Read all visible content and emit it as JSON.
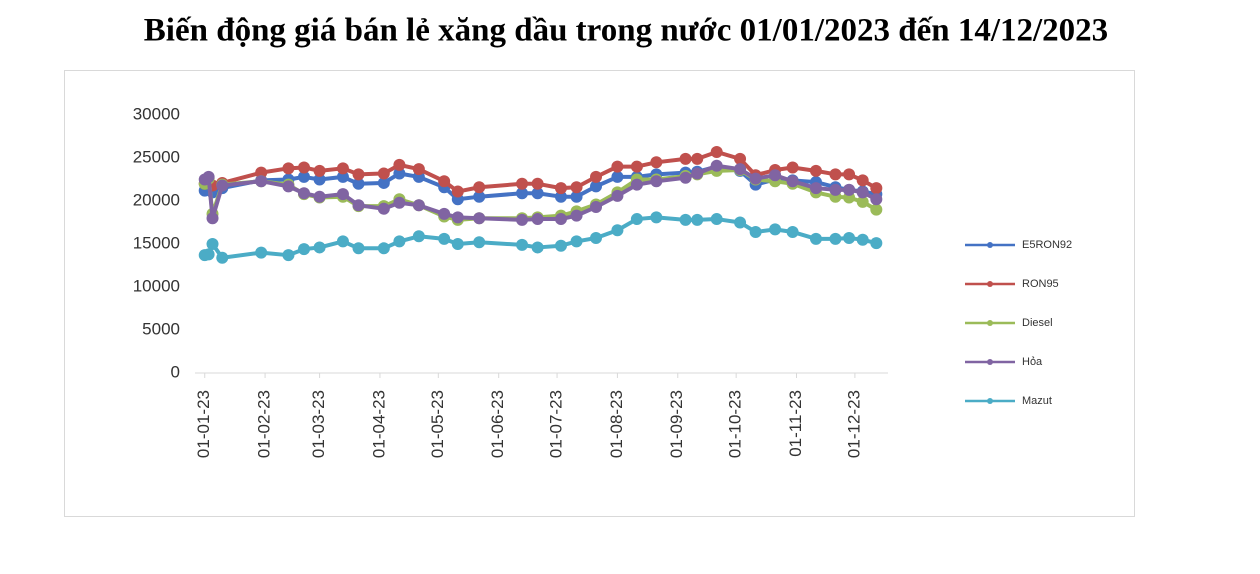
{
  "chart_data": {
    "type": "line",
    "title": "Biến động giá bán lẻ xăng dầu trong nước 01/01/2023 đến 14/12/2023",
    "x": [
      "2023-01-01",
      "2023-01-03",
      "2023-01-05",
      "2023-01-10",
      "2023-01-30",
      "2023-02-13",
      "2023-02-21",
      "2023-03-01",
      "2023-03-13",
      "2023-03-21",
      "2023-04-03",
      "2023-04-11",
      "2023-04-21",
      "2023-05-04",
      "2023-05-11",
      "2023-05-22",
      "2023-06-13",
      "2023-06-21",
      "2023-07-03",
      "2023-07-11",
      "2023-07-21",
      "2023-08-01",
      "2023-08-11",
      "2023-08-21",
      "2023-09-05",
      "2023-09-11",
      "2023-09-21",
      "2023-10-03",
      "2023-10-11",
      "2023-10-21",
      "2023-10-30",
      "2023-11-11",
      "2023-11-21",
      "2023-11-28",
      "2023-12-05",
      "2023-12-12"
    ],
    "series": [
      {
        "name": "E5RON92",
        "color": "#4472c4",
        "values": [
          21200,
          21800,
          21000,
          21500,
          22400,
          22500,
          22800,
          22500,
          22800,
          22000,
          22100,
          23200,
          22800,
          21600,
          20200,
          20500,
          20900,
          20900,
          20500,
          20500,
          21700,
          22800,
          22800,
          23100,
          23300,
          23400,
          24000,
          23500,
          21900,
          22500,
          22400,
          22200,
          21600,
          21300,
          21100,
          20800
        ]
      },
      {
        "name": "RON95",
        "color": "#c0504d",
        "values": [
          22000,
          22200,
          21800,
          22100,
          23300,
          23800,
          23900,
          23500,
          23800,
          23100,
          23200,
          24200,
          23700,
          22300,
          21100,
          21600,
          22000,
          22000,
          21500,
          21600,
          22800,
          24000,
          24000,
          24500,
          24900,
          24900,
          25700,
          24900,
          23000,
          23600,
          23900,
          23500,
          23100,
          23100,
          22400,
          21500
        ]
      },
      {
        "name": "Diesel",
        "color": "#9bbb59",
        "values": [
          22000,
          22600,
          18500,
          21900,
          22300,
          21900,
          20800,
          20400,
          20500,
          19400,
          19400,
          20200,
          19500,
          18200,
          17800,
          18000,
          18000,
          18100,
          18300,
          18800,
          19600,
          21000,
          22500,
          22500,
          22900,
          23100,
          23500,
          23600,
          22500,
          22300,
          22000,
          21000,
          20500,
          20400,
          19900,
          19000
        ]
      },
      {
        "name": "Hỏa",
        "color": "#8064a2",
        "values": [
          22500,
          22800,
          18000,
          21800,
          22300,
          21700,
          20900,
          20500,
          20800,
          19500,
          19100,
          19800,
          19500,
          18500,
          18100,
          18000,
          17800,
          17900,
          17900,
          18300,
          19300,
          20600,
          21900,
          22300,
          22700,
          23200,
          24100,
          23700,
          22600,
          23000,
          22300,
          21500,
          21300,
          21300,
          21000,
          20200
        ]
      },
      {
        "name": "Mazut",
        "color": "#4bacc6",
        "values": [
          13700,
          13800,
          15000,
          13400,
          14000,
          13700,
          14400,
          14600,
          15300,
          14500,
          14500,
          15300,
          15900,
          15600,
          15000,
          15200,
          14900,
          14600,
          14800,
          15300,
          15700,
          16600,
          17900,
          18100,
          17800,
          17800,
          17900,
          17500,
          16400,
          16700,
          16400,
          15600,
          15600,
          15700,
          15500,
          15100
        ]
      }
    ],
    "xlim": [
      "2022-12-27",
      "2023-12-18"
    ],
    "xticks": [
      {
        "value": "2023-01-01",
        "label": "01-01-23"
      },
      {
        "value": "2023-02-01",
        "label": "01-02-23"
      },
      {
        "value": "2023-03-01",
        "label": "01-03-23"
      },
      {
        "value": "2023-04-01",
        "label": "01-04-23"
      },
      {
        "value": "2023-05-01",
        "label": "01-05-23"
      },
      {
        "value": "2023-06-01",
        "label": "01-06-23"
      },
      {
        "value": "2023-07-01",
        "label": "01-07-23"
      },
      {
        "value": "2023-08-01",
        "label": "01-08-23"
      },
      {
        "value": "2023-09-01",
        "label": "01-09-23"
      },
      {
        "value": "2023-10-01",
        "label": "01-10-23"
      },
      {
        "value": "2023-11-01",
        "label": "01-11-23"
      },
      {
        "value": "2023-12-01",
        "label": "01-12-23"
      }
    ],
    "ylim": [
      0,
      30000
    ],
    "yticks": [
      0,
      5000,
      10000,
      15000,
      20000,
      25000,
      30000
    ],
    "legend": "right"
  }
}
